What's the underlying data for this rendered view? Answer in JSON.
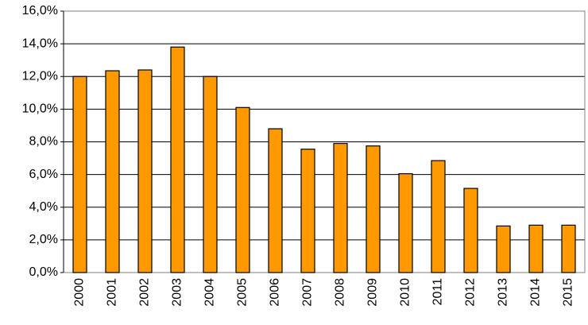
{
  "chart_data": {
    "type": "bar",
    "categories": [
      "2000",
      "2001",
      "2002",
      "2003",
      "2004",
      "2005",
      "2006",
      "2007",
      "2008",
      "2009",
      "2010",
      "2011",
      "2012",
      "2013",
      "2014",
      "2015"
    ],
    "values": [
      12.0,
      12.35,
      12.4,
      13.8,
      12.0,
      10.1,
      8.8,
      7.55,
      7.9,
      7.75,
      6.05,
      6.85,
      5.15,
      2.85,
      2.9,
      2.9
    ],
    "color": "#ff9900",
    "ylim": [
      0,
      16
    ],
    "yticks": [
      {
        "value": 0,
        "label": "0,0%"
      },
      {
        "value": 2,
        "label": "2,0%"
      },
      {
        "value": 4,
        "label": "4,0%"
      },
      {
        "value": 6,
        "label": "6,0%"
      },
      {
        "value": 8,
        "label": "8,0%"
      },
      {
        "value": 10,
        "label": "10,0%"
      },
      {
        "value": 12,
        "label": "12,0%"
      },
      {
        "value": 14,
        "label": "14,0%"
      },
      {
        "value": 16,
        "label": "16,0%"
      }
    ],
    "grid": true
  }
}
